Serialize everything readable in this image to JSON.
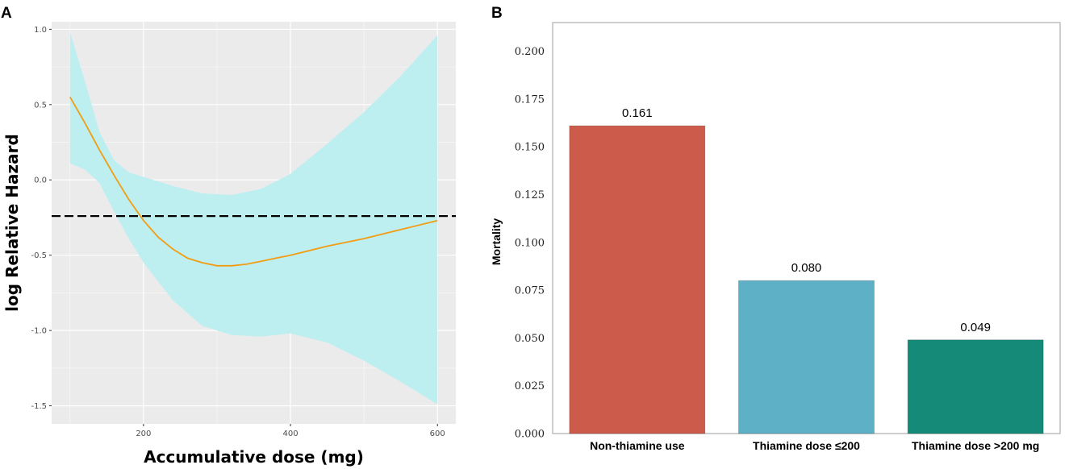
{
  "chart_data": [
    {
      "panel": "A",
      "type": "line",
      "xlabel": "Accumulative dose (mg)",
      "ylabel": "log Relative Hazard",
      "xlim": [
        75,
        625
      ],
      "ylim": [
        -1.62,
        1.05
      ],
      "xticks": [
        200,
        400,
        600
      ],
      "yticks": [
        -1.5,
        -1.0,
        -0.5,
        0.0,
        0.5,
        1.0
      ],
      "ytick_labels": [
        "-1.5",
        "-1.0",
        "-0.5",
        "0.0",
        "0.5",
        "1.0"
      ],
      "x_minor_grid": [
        100,
        300,
        500
      ],
      "y_minor_grid": [
        -1.25,
        -0.75,
        -0.25,
        0.25,
        0.75
      ],
      "reference_line": -0.24,
      "series": [
        {
          "name": "estimate",
          "color": "#f39c12",
          "x": [
            100,
            120,
            140,
            160,
            180,
            200,
            220,
            240,
            260,
            280,
            300,
            320,
            340,
            360,
            380,
            400,
            450,
            500,
            550,
            600
          ],
          "y": [
            0.55,
            0.38,
            0.2,
            0.03,
            -0.13,
            -0.27,
            -0.38,
            -0.46,
            -0.52,
            -0.55,
            -0.57,
            -0.57,
            -0.56,
            -0.54,
            -0.52,
            -0.5,
            -0.44,
            -0.39,
            -0.33,
            -0.27
          ]
        }
      ],
      "band": {
        "color": "#bdeff0",
        "x": [
          100,
          120,
          140,
          160,
          180,
          200,
          240,
          280,
          320,
          360,
          400,
          450,
          500,
          550,
          600
        ],
        "upper": [
          0.98,
          0.66,
          0.32,
          0.13,
          0.05,
          0.02,
          -0.04,
          -0.09,
          -0.1,
          -0.06,
          0.04,
          0.24,
          0.45,
          0.69,
          0.96
        ],
        "lower": [
          0.11,
          0.07,
          -0.02,
          -0.21,
          -0.39,
          -0.55,
          -0.8,
          -0.97,
          -1.03,
          -1.04,
          -1.02,
          -1.08,
          -1.2,
          -1.34,
          -1.49
        ]
      }
    },
    {
      "panel": "B",
      "type": "bar",
      "ylabel": "Mortality",
      "categories": [
        "Non-thiamine use",
        "Thiamine  dose ≤200",
        "Thiamine  dose >200 mg"
      ],
      "values": [
        0.161,
        0.08,
        0.049
      ],
      "value_labels": [
        "0.161",
        "0.080",
        "0.049"
      ],
      "colors": [
        "#cd5b4b",
        "#5eb0c6",
        "#168a78"
      ],
      "ylim": [
        0,
        0.215
      ],
      "yticks": [
        0.0,
        0.025,
        0.05,
        0.075,
        0.1,
        0.125,
        0.15,
        0.175,
        0.2
      ],
      "ytick_labels": [
        "0.000",
        "0.025",
        "0.050",
        "0.075",
        "0.100",
        "0.125",
        "0.150",
        "0.175",
        "0.200"
      ]
    }
  ],
  "panels": {
    "a_letter": "A",
    "b_letter": "B"
  }
}
